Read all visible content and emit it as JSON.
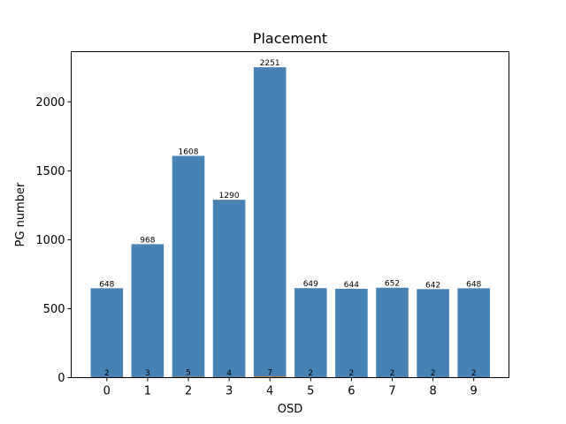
{
  "chart_data": {
    "type": "bar",
    "title": "Placement",
    "xlabel": "OSD",
    "ylabel": "PG number",
    "categories": [
      "0",
      "1",
      "2",
      "3",
      "4",
      "5",
      "6",
      "7",
      "8",
      "9"
    ],
    "series": [
      {
        "values": [
          648,
          968,
          1608,
          1290,
          2251,
          649,
          644,
          652,
          642,
          648
        ],
        "color": "#4682b4"
      },
      {
        "values": [
          2,
          3,
          5,
          4,
          7,
          2,
          2,
          2,
          2,
          2
        ],
        "color": "#ff7f0e"
      }
    ],
    "ylim": [
      0,
      2364
    ],
    "yticks": [
      0,
      500,
      1000,
      1500,
      2000
    ],
    "grid": false,
    "legend": "none"
  }
}
